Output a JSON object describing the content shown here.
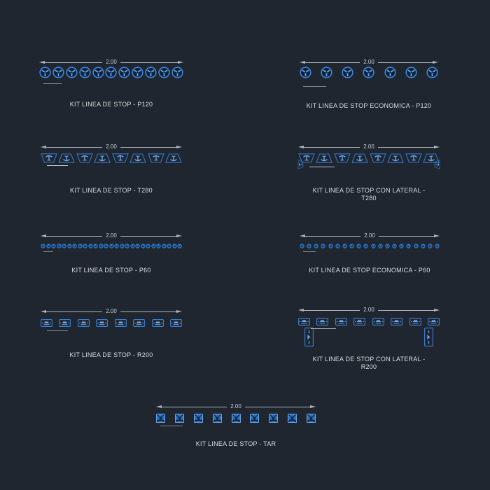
{
  "drawing": {
    "background": "#20262f",
    "accent_blue": "#3a80d8",
    "glyph_blue": "#69a5ea",
    "dim_line_color": "#b0b5bb",
    "label_color": "#d9dcdf"
  },
  "kits": [
    {
      "label": "KIT LINEA DE STOP - P120",
      "dimension": "2.00",
      "type": "stud-large",
      "count": 11,
      "unit_icon": "road-stud-p120-icon"
    },
    {
      "label": "KIT LINEA DE STOP ECONOMICA - P120",
      "dimension": "2.00",
      "type": "stud-large",
      "count": 7,
      "unit_icon": "road-stud-p120-icon"
    },
    {
      "label": "KIT LINEA DE STOP - T280",
      "dimension": "2.00",
      "type": "trap",
      "count": 8,
      "unit_icon": "tachon-t280-icon"
    },
    {
      "label": "KIT LINEA DE STOP CON LATERAL - T280",
      "dimension": "2.00",
      "type": "trap",
      "count": 8,
      "unit_icon": "tachon-t280-icon",
      "has_laterals": true
    },
    {
      "label": "KIT LINEA DE STOP - P60",
      "dimension": "2.00",
      "type": "stud-small",
      "count": 27,
      "unit_icon": "road-stud-p60-icon"
    },
    {
      "label": "KIT LINEA DE STOP ECONOMICA - P60",
      "dimension": "2.00",
      "type": "stud-small",
      "count": 20,
      "unit_icon": "road-stud-p60-icon"
    },
    {
      "label": "KIT LINEA DE STOP - R200",
      "dimension": "2.00",
      "type": "rect",
      "count": 8,
      "unit_icon": "reductor-r200-icon"
    },
    {
      "label": "KIT LINEA DE STOP CON LATERAL - R200",
      "dimension": "2.00",
      "type": "rect",
      "count": 8,
      "unit_icon": "reductor-r200-icon",
      "has_laterals": true
    },
    {
      "label": "KIT LINEA DE STOP - TAR",
      "dimension": "2.00",
      "type": "tar",
      "count": 9,
      "unit_icon": "tachon-tar-icon"
    }
  ]
}
